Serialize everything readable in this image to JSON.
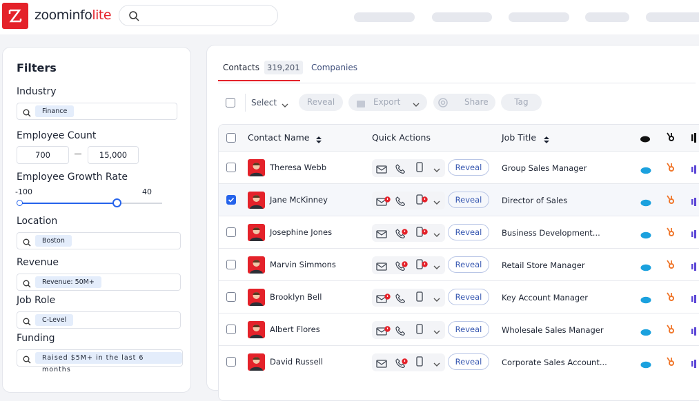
{
  "header": {
    "brand": "zoominfo",
    "brand_suffix": "lite"
  },
  "filters": {
    "title": "Filters",
    "industry": {
      "label": "Industry",
      "chip": "Finance"
    },
    "employee_count": {
      "label": "Employee Count",
      "min": "700",
      "max": "15,000"
    },
    "growth": {
      "label": "Employee Growth Rate",
      "min": "-100",
      "max": "40"
    },
    "location": {
      "label": "Location",
      "chip": "Boston"
    },
    "revenue": {
      "label": "Revenue",
      "chip": "Revenue: 50M+"
    },
    "job_role": {
      "label": "Job Role",
      "chip": "C-Level"
    },
    "funding": {
      "label": "Funding",
      "chip": "Raised $5M+ in the last 6 months"
    }
  },
  "tabs": [
    {
      "label": "Contacts",
      "count": "319,201",
      "active": true
    },
    {
      "label": "Companies",
      "active": false
    }
  ],
  "toolbar": {
    "select": "Select",
    "reveal": "Reveal",
    "export": "Export",
    "share": "Share",
    "tag": "Tag"
  },
  "table": {
    "columns": [
      "Contact Name",
      "Quick Actions",
      "Job Title"
    ],
    "rows": [
      {
        "name": "Theresa Webb",
        "action": "Reveal",
        "title": "Group Sales Manager",
        "checked": false,
        "badges": []
      },
      {
        "name": "Jane McKinney",
        "action": "Reveal",
        "title": "Director of Sales",
        "checked": true,
        "badges": [
          "email",
          "mobile"
        ]
      },
      {
        "name": "Josephine Jones",
        "action": "Reveal",
        "title": "Business Development...",
        "checked": false,
        "badges": [
          "phone",
          "mobile"
        ]
      },
      {
        "name": "Marvin Simmons",
        "action": "Reveal",
        "title": "Retail Store Manager",
        "checked": false,
        "badges": [
          "phone",
          "mobile"
        ]
      },
      {
        "name": "Brooklyn Bell",
        "action": "Reveal",
        "title": "Key Account Manager",
        "checked": false,
        "badges": [
          "email"
        ]
      },
      {
        "name": "Albert Flores",
        "action": "Reveal",
        "title": "Wholesale Sales Manager",
        "checked": false,
        "badges": [
          "email"
        ]
      },
      {
        "name": "David Russell",
        "action": "Reveal",
        "title": "Corporate Sales Account...",
        "checked": false,
        "badges": [
          "phone"
        ]
      }
    ]
  }
}
